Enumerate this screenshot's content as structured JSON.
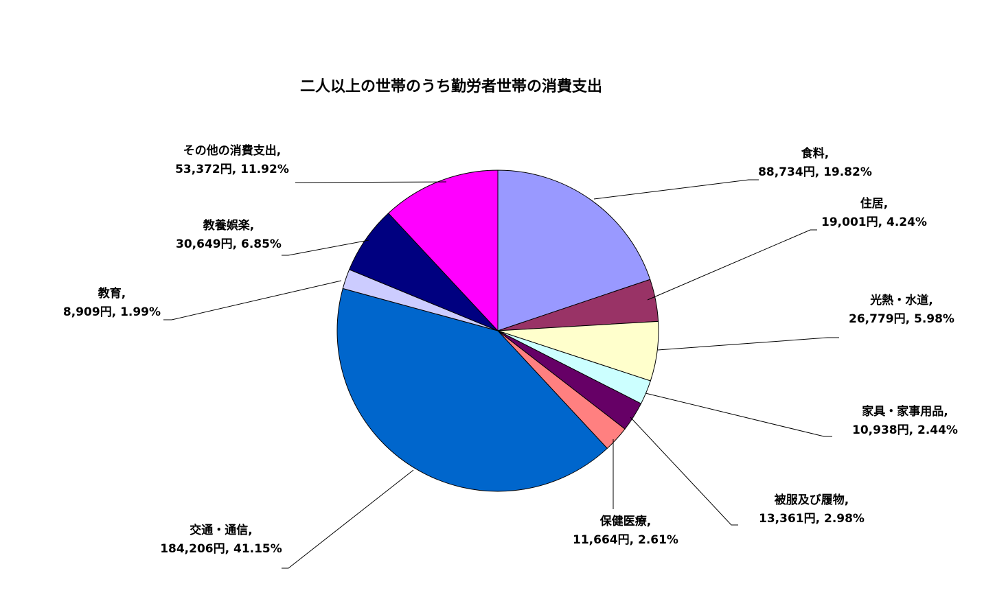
{
  "chart_data": {
    "type": "pie",
    "title": "二人以上の世帯のうち勤労者世帯の消費支出",
    "start_angle_deg": 0,
    "direction": "clockwise",
    "legend": "none",
    "slices": [
      {
        "category": "食料",
        "value": 88734,
        "value_label": "88,734円",
        "percent": 19.82,
        "percent_label": "19.82%",
        "color": "#9999FF"
      },
      {
        "category": "住居",
        "value": 19001,
        "value_label": "19,001円",
        "percent": 4.24,
        "percent_label": "4.24%",
        "color": "#993366"
      },
      {
        "category": "光熱・水道",
        "value": 26779,
        "value_label": "26,779円",
        "percent": 5.98,
        "percent_label": "5.98%",
        "color": "#FFFFCC"
      },
      {
        "category": "家具・家事用品",
        "value": 10938,
        "value_label": "10,938円",
        "percent": 2.44,
        "percent_label": "2.44%",
        "color": "#CCFFFF"
      },
      {
        "category": "被服及び履物",
        "value": 13361,
        "value_label": "13,361円",
        "percent": 2.98,
        "percent_label": "2.98%",
        "color": "#660066"
      },
      {
        "category": "保健医療",
        "value": 11664,
        "value_label": "11,664円",
        "percent": 2.61,
        "percent_label": "2.61%",
        "color": "#FF8080"
      },
      {
        "category": "交通・通信",
        "value": 184206,
        "value_label": "184,206円",
        "percent": 41.15,
        "percent_label": "41.15%",
        "color": "#0066CC"
      },
      {
        "category": "教育",
        "value": 8909,
        "value_label": "8,909円",
        "percent": 1.99,
        "percent_label": "1.99%",
        "color": "#CCCCFF"
      },
      {
        "category": "教養娯楽",
        "value": 30649,
        "value_label": "30,649円",
        "percent": 6.85,
        "percent_label": "6.85%",
        "color": "#000080"
      },
      {
        "category": "その他の消費支出",
        "value": 53372,
        "value_label": "53,372円",
        "percent": 11.92,
        "percent_label": "11.92%",
        "color": "#FF00FF"
      }
    ]
  }
}
